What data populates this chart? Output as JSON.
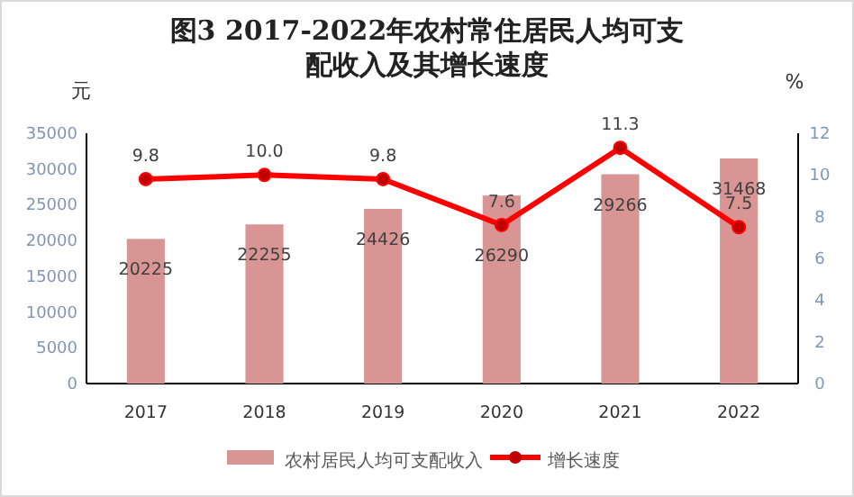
{
  "chart_data": {
    "type": "bar",
    "title": "图3 2017-2022年农村常住居民人均可支配收入及其增长速度",
    "categories": [
      "2017",
      "2018",
      "2019",
      "2020",
      "2021",
      "2022"
    ],
    "series": [
      {
        "name": "农村居民人均可支配收入",
        "color": "#d99594",
        "values": [
          20225,
          22255,
          24426,
          26290,
          29266,
          31468
        ]
      },
      {
        "name": "增长速度",
        "type": "line",
        "axis": "y2",
        "color": "#ff0000",
        "marker": "circle",
        "values": [
          9.8,
          10.0,
          9.8,
          7.6,
          11.3,
          7.5
        ],
        "value_labels": [
          "9.8",
          "10.0",
          "9.8",
          "7.6",
          "11.3",
          "7.5"
        ]
      }
    ],
    "data_labels": true,
    "ylabel": "元",
    "y2label": "%",
    "ylim": [
      0,
      35000
    ],
    "yticks": [
      0,
      5000,
      10000,
      15000,
      20000,
      25000,
      30000,
      35000
    ],
    "y2lim": [
      0,
      12
    ],
    "y2ticks": [
      0,
      2,
      4,
      6,
      8,
      10,
      12
    ],
    "grid": false,
    "legend": "bottom"
  }
}
